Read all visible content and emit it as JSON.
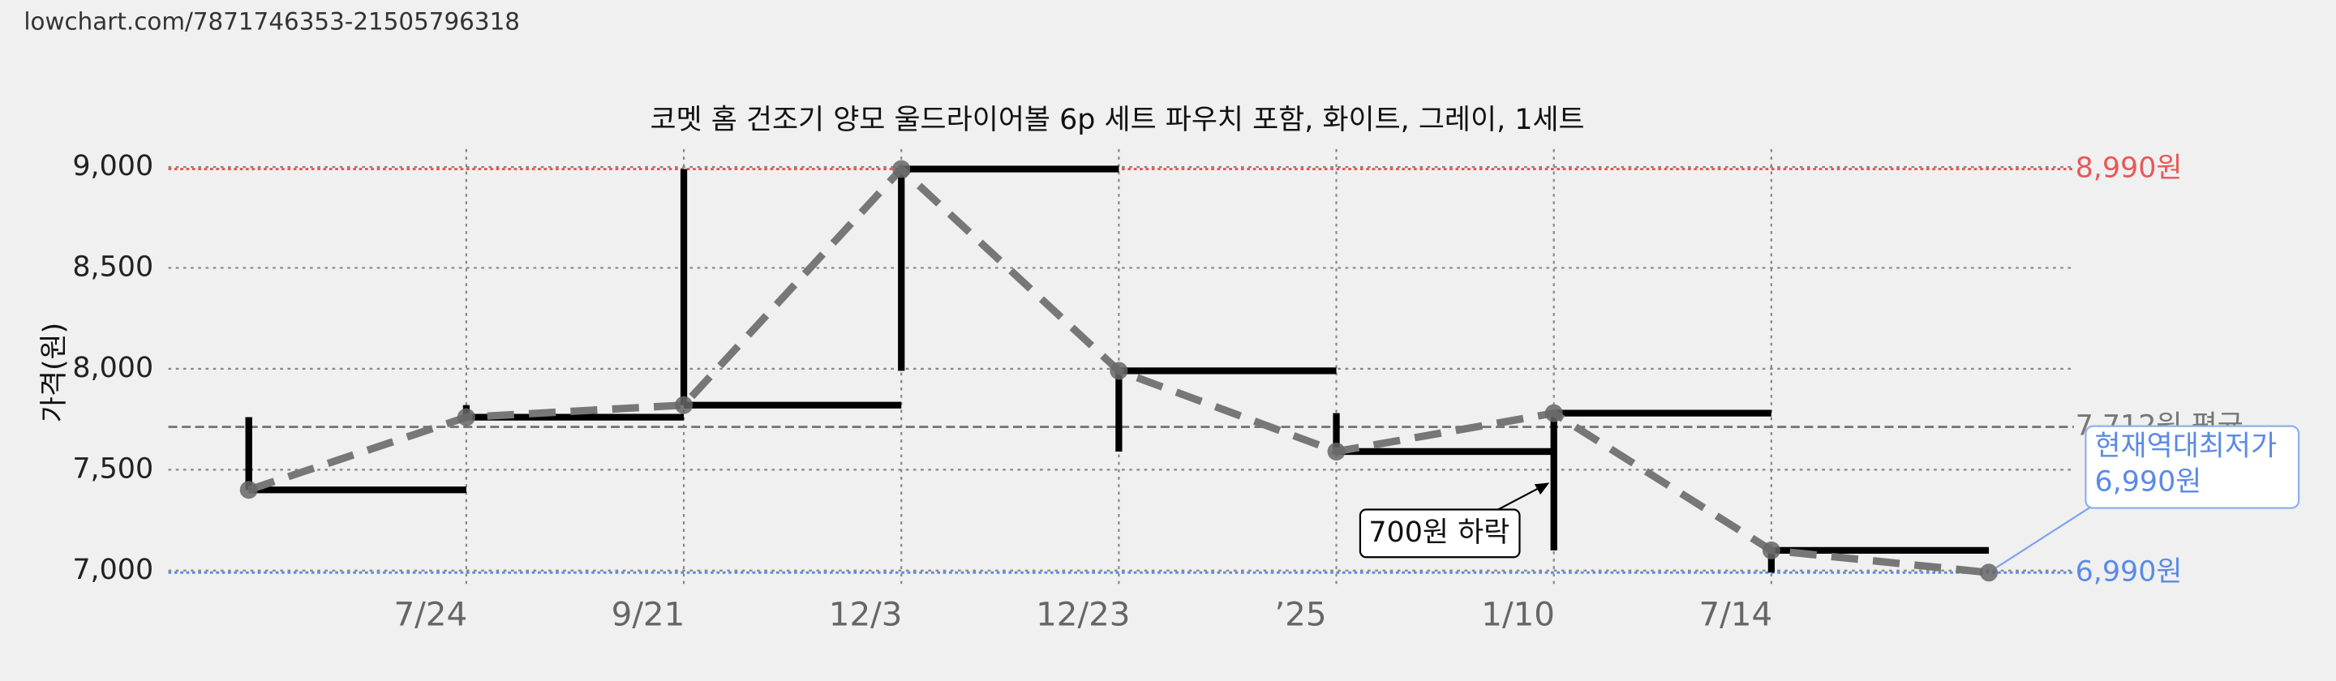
{
  "page": {
    "url": "lowchart.com/7871746353-21505796318"
  },
  "chart_data": {
    "type": "line",
    "step": true,
    "title": "코멧 홈 건조기 양모 울드라이어볼 6p 세트 파우치 포함, 화이트, 그레이, 1세트",
    "y_label": "가격(원)",
    "categories": [
      null,
      "7/24",
      "9/21",
      "12/3",
      "12/23",
      "’25",
      "1/10",
      "7/14",
      null
    ],
    "values": [
      7400,
      7760,
      7820,
      8990,
      7990,
      7590,
      7780,
      7100,
      6990
    ],
    "color": "#000000",
    "trend_color": "#777777",
    "ylim": [
      7000,
      9000
    ],
    "yticks": [
      {
        "value": 7000,
        "label": "7,000"
      },
      {
        "value": 7500,
        "label": "7,500"
      },
      {
        "value": 8000,
        "label": "8,000"
      },
      {
        "value": 8500,
        "label": "8,500"
      },
      {
        "value": 9000,
        "label": "9,000"
      }
    ],
    "grid": true,
    "reference_lines": [
      {
        "value": 8990,
        "label": "8,990원",
        "color": "#e85858"
      },
      {
        "value": 7712,
        "label": "7,712원 평균",
        "color": "#777777"
      },
      {
        "value": 6990,
        "label": "6,990원",
        "color": "#5b8ae6"
      }
    ],
    "annotations": [
      {
        "text": "700원 하락"
      },
      {
        "text": [
          "현재역대최저가",
          "6,990원"
        ]
      }
    ]
  }
}
